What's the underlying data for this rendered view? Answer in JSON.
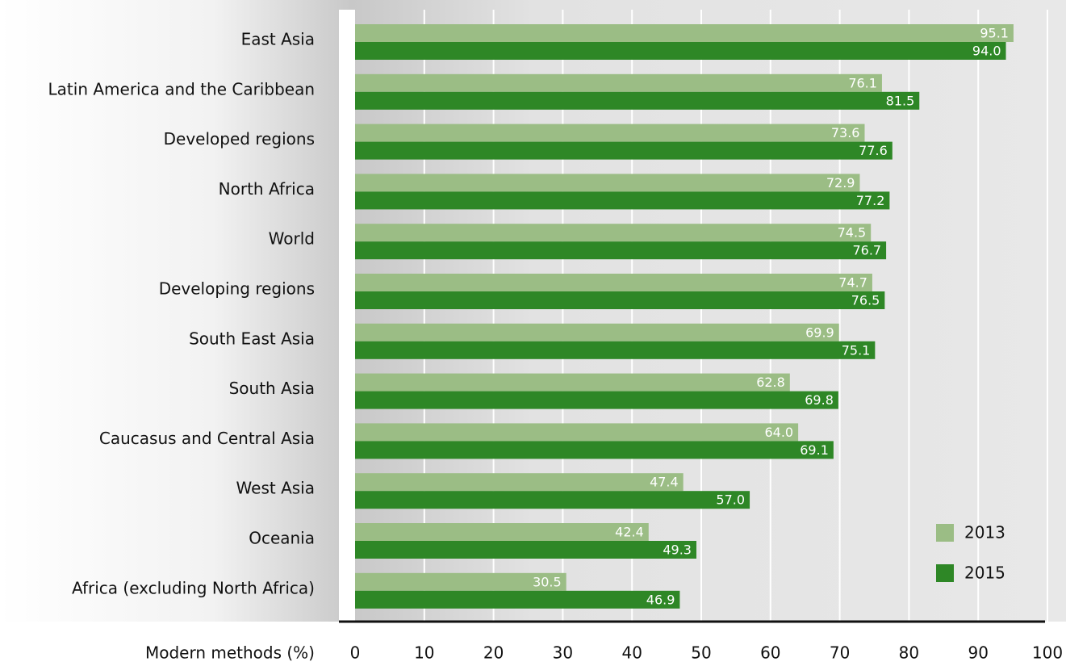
{
  "chart_data": {
    "type": "bar",
    "orientation": "horizontal",
    "x_label": "Modern methods (%)",
    "categories": [
      "East Asia",
      "Latin America and the Caribbean",
      "Developed regions",
      "North Africa",
      "World",
      "Developing regions",
      "South East Asia",
      "South Asia",
      "Caucasus and Central Asia",
      "West Asia",
      "Oceania",
      "Africa (excluding North Africa)"
    ],
    "series": [
      {
        "name": "2013",
        "color": "#9bbd85",
        "values": [
          95.1,
          76.1,
          73.6,
          72.9,
          74.5,
          74.7,
          69.9,
          62.8,
          64,
          47.4,
          42.4,
          30.5
        ],
        "value_labels": [
          "95.1",
          "76.1",
          "73.6",
          "72.9",
          "74.5",
          "74.7",
          "69.9",
          "62.8",
          "64.0",
          "47.4",
          "42.4",
          "30.5"
        ]
      },
      {
        "name": "2015",
        "color": "#2e8726",
        "values": [
          94,
          81.5,
          77.6,
          77.2,
          76.7,
          76.5,
          75.1,
          69.8,
          69.1,
          57,
          49.3,
          46.9
        ],
        "value_labels": [
          "94.0",
          "81.5",
          "77.6",
          "77.2",
          "76.7",
          "76.5",
          "75.1",
          "69.8",
          "69.1",
          "57.0",
          "49.3",
          "46.9"
        ]
      }
    ],
    "xlim": [
      0,
      100
    ],
    "xticks": [
      0,
      10,
      20,
      30,
      40,
      50,
      60,
      70,
      80,
      90,
      100
    ],
    "grid": true,
    "legend": "lower right"
  }
}
